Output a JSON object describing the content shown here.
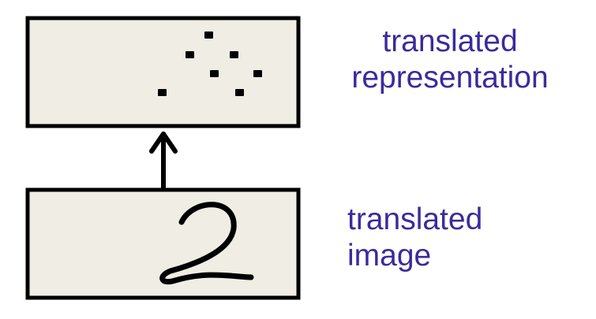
{
  "top_box": {
    "caption_line1": "translated",
    "caption_line2": "representation",
    "dots": 7
  },
  "bottom_box": {
    "caption_line1": "translated",
    "caption_line2": "image",
    "digit": "2"
  },
  "colors": {
    "box_fill": "#efede4",
    "stroke": "#000000",
    "caption": "#3b2b9a"
  }
}
